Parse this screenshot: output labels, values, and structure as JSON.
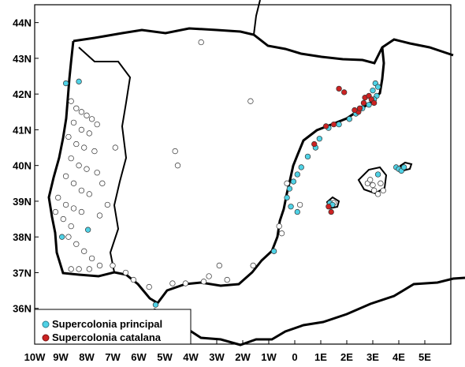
{
  "map": {
    "lat_range": [
      35,
      44.5
    ],
    "lon_range": [
      -10,
      6
    ],
    "lat_ticks": [
      "44N",
      "43N",
      "42N",
      "41N",
      "40N",
      "39N",
      "38N",
      "37N",
      "36N"
    ],
    "lat_values": [
      44,
      43,
      42,
      41,
      40,
      39,
      38,
      37,
      36
    ],
    "lon_ticks": [
      "10W",
      "9W",
      "8W",
      "7W",
      "6W",
      "5W",
      "4W",
      "3W",
      "2W",
      "1W",
      "0",
      "1E",
      "2E",
      "3E",
      "4E",
      "5E"
    ],
    "lon_values": [
      -10,
      -9,
      -8,
      -7,
      -6,
      -5,
      -4,
      -3,
      -2,
      -1,
      0,
      1,
      2,
      3,
      4,
      5
    ],
    "coast_color": "#000000",
    "land_color": "#ffffff"
  },
  "legend": {
    "items": [
      {
        "label": "Supercolonia principal",
        "color": "#4fd2e6"
      },
      {
        "label": "Supercolonia catalana",
        "color": "#cc2222"
      }
    ]
  },
  "chart_data": {
    "type": "scatter",
    "series": [
      {
        "name": "Supercolonia principal",
        "color": "#4fd2e6",
        "points": [
          [
            -8.8,
            42.3
          ],
          [
            -8.3,
            42.35
          ],
          [
            3.1,
            42.3
          ],
          [
            3.2,
            42.2
          ],
          [
            3.0,
            42.1
          ],
          [
            3.15,
            41.95
          ],
          [
            3.05,
            41.85
          ],
          [
            2.85,
            41.7
          ],
          [
            2.6,
            41.6
          ],
          [
            2.35,
            41.45
          ],
          [
            2.1,
            41.3
          ],
          [
            1.7,
            41.15
          ],
          [
            1.3,
            41.05
          ],
          [
            0.95,
            40.75
          ],
          [
            0.8,
            40.5
          ],
          [
            0.5,
            40.25
          ],
          [
            0.25,
            39.95
          ],
          [
            0.1,
            39.75
          ],
          [
            -0.05,
            39.55
          ],
          [
            -0.2,
            39.35
          ],
          [
            -0.3,
            39.1
          ],
          [
            -0.15,
            38.85
          ],
          [
            0.1,
            38.7
          ],
          [
            1.35,
            38.95
          ],
          [
            1.45,
            38.9
          ],
          [
            3.9,
            39.95
          ],
          [
            4.0,
            39.9
          ],
          [
            4.1,
            39.85
          ],
          [
            4.2,
            39.95
          ],
          [
            3.2,
            39.75
          ],
          [
            -0.8,
            37.6
          ],
          [
            -8.95,
            38.0
          ],
          [
            -7.95,
            38.2
          ],
          [
            -5.35,
            36.1
          ]
        ]
      },
      {
        "name": "Supercolonia catalana",
        "color": "#cc2222",
        "points": [
          [
            1.7,
            42.15
          ],
          [
            1.9,
            42.05
          ],
          [
            2.7,
            41.9
          ],
          [
            2.85,
            41.95
          ],
          [
            2.95,
            41.85
          ],
          [
            3.05,
            41.75
          ],
          [
            2.45,
            41.5
          ],
          [
            2.3,
            41.55
          ],
          [
            1.5,
            41.15
          ],
          [
            1.2,
            41.1
          ],
          [
            0.75,
            40.6
          ],
          [
            1.3,
            38.85
          ],
          [
            1.4,
            38.7
          ],
          [
            2.5,
            41.6
          ],
          [
            2.65,
            41.75
          ]
        ]
      },
      {
        "name": "",
        "color": "#ffffff",
        "points": [
          [
            -8.6,
            41.8
          ],
          [
            -8.4,
            41.6
          ],
          [
            -8.2,
            41.5
          ],
          [
            -8.0,
            41.4
          ],
          [
            -7.8,
            41.3
          ],
          [
            -7.6,
            41.15
          ],
          [
            -8.5,
            41.2
          ],
          [
            -8.2,
            41.0
          ],
          [
            -7.9,
            40.9
          ],
          [
            -8.7,
            40.8
          ],
          [
            -8.4,
            40.6
          ],
          [
            -8.1,
            40.5
          ],
          [
            -7.7,
            40.4
          ],
          [
            -8.6,
            40.2
          ],
          [
            -8.3,
            40.0
          ],
          [
            -8.0,
            39.9
          ],
          [
            -7.6,
            39.8
          ],
          [
            -8.8,
            39.7
          ],
          [
            -8.5,
            39.5
          ],
          [
            -8.2,
            39.3
          ],
          [
            -7.9,
            39.2
          ],
          [
            -9.1,
            39.1
          ],
          [
            -8.8,
            38.9
          ],
          [
            -8.5,
            38.8
          ],
          [
            -8.2,
            38.7
          ],
          [
            -9.2,
            38.7
          ],
          [
            -8.9,
            38.5
          ],
          [
            -8.6,
            38.3
          ],
          [
            -8.7,
            38.0
          ],
          [
            -8.4,
            37.8
          ],
          [
            -8.1,
            37.6
          ],
          [
            -7.8,
            37.4
          ],
          [
            -8.6,
            37.1
          ],
          [
            -8.3,
            37.1
          ],
          [
            -7.9,
            37.1
          ],
          [
            -7.5,
            37.2
          ],
          [
            -7.0,
            37.2
          ],
          [
            -6.5,
            37.0
          ],
          [
            -6.2,
            36.8
          ],
          [
            -5.6,
            36.6
          ],
          [
            -4.7,
            36.7
          ],
          [
            -4.2,
            36.7
          ],
          [
            -3.5,
            36.75
          ],
          [
            -3.3,
            36.9
          ],
          [
            -2.9,
            37.2
          ],
          [
            -2.6,
            36.8
          ],
          [
            -1.7,
            41.8
          ],
          [
            -4.6,
            40.4
          ],
          [
            -4.5,
            40.0
          ],
          [
            -3.6,
            43.45
          ],
          [
            -0.3,
            39.5
          ],
          [
            -0.6,
            38.3
          ],
          [
            -1.6,
            37.2
          ],
          [
            -0.5,
            38.1
          ],
          [
            0.2,
            38.9
          ],
          [
            2.8,
            39.5
          ],
          [
            3.0,
            39.45
          ],
          [
            3.3,
            39.5
          ],
          [
            3.4,
            39.3
          ],
          [
            3.05,
            39.3
          ],
          [
            2.9,
            39.6
          ],
          [
            3.2,
            39.2
          ],
          [
            1.5,
            38.95
          ],
          [
            -7.5,
            38.6
          ],
          [
            -7.2,
            38.9
          ],
          [
            -6.9,
            40.5
          ],
          [
            -7.4,
            39.5
          ]
        ]
      }
    ]
  }
}
